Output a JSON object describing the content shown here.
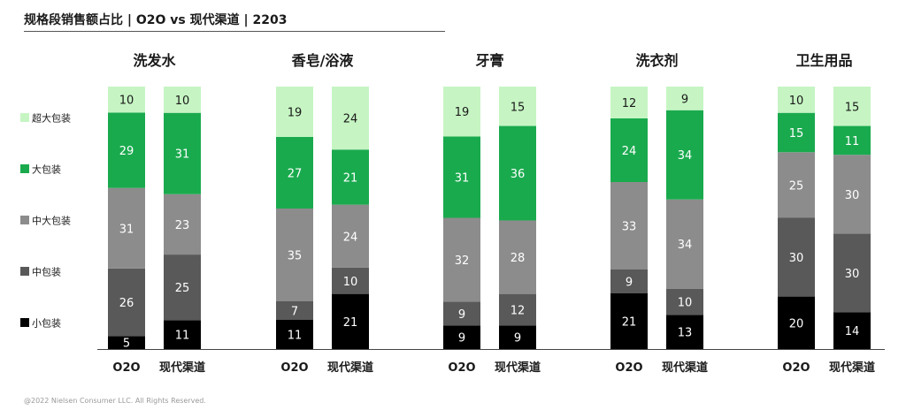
{
  "title": "规格段销售额占比 | O2O vs 现代渠道 | 2203",
  "copyright": "@2022 Nielsen Consumer LLC. All Rights Reserved.",
  "colors": {
    "超大包装": "#c6f5c3",
    "大包装": "#1aaa4e",
    "中大包装": "#8c8c8c",
    "中包装": "#595959",
    "小包装": "#000000",
    "text_dark_seg": "#ffffff",
    "text_light_seg": "#1a1a1a"
  },
  "chart_data": {
    "type": "bar",
    "stacked": true,
    "unit": "%",
    "legend": {
      "position": "left",
      "order": [
        "超大包装",
        "大包装",
        "中大包装",
        "中包装",
        "小包装"
      ]
    },
    "stack_order_bottom_to_top": [
      "小包装",
      "中包装",
      "中大包装",
      "大包装",
      "超大包装"
    ],
    "groups": [
      {
        "name": "洗发水",
        "bars": [
          {
            "label": "O2O",
            "values": {
              "小包装": 5,
              "中包装": 26,
              "中大包装": 31,
              "大包装": 29,
              "超大包装": 10
            }
          },
          {
            "label": "现代渠道",
            "values": {
              "小包装": 11,
              "中包装": 25,
              "中大包装": 23,
              "大包装": 31,
              "超大包装": 10
            }
          }
        ]
      },
      {
        "name": "香皂/浴液",
        "bars": [
          {
            "label": "O2O",
            "values": {
              "小包装": 11,
              "中包装": 7,
              "中大包装": 35,
              "大包装": 27,
              "超大包装": 19
            }
          },
          {
            "label": "现代渠道",
            "values": {
              "小包装": 21,
              "中包装": 10,
              "中大包装": 24,
              "大包装": 21,
              "超大包装": 24
            }
          }
        ]
      },
      {
        "name": "牙膏",
        "bars": [
          {
            "label": "O2O",
            "values": {
              "小包装": 9,
              "中包装": 9,
              "中大包装": 32,
              "大包装": 31,
              "超大包装": 19
            }
          },
          {
            "label": "现代渠道",
            "values": {
              "小包装": 9,
              "中包装": 12,
              "中大包装": 28,
              "大包装": 36,
              "超大包装": 15
            }
          }
        ]
      },
      {
        "name": "洗衣剂",
        "bars": [
          {
            "label": "O2O",
            "values": {
              "小包装": 21,
              "中包装": 9,
              "中大包装": 33,
              "大包装": 24,
              "超大包装": 12
            }
          },
          {
            "label": "现代渠道",
            "values": {
              "小包装": 13,
              "中包装": 10,
              "中大包装": 34,
              "大包装": 34,
              "超大包装": 9
            }
          }
        ]
      },
      {
        "name": "卫生用品",
        "bars": [
          {
            "label": "O2O",
            "values": {
              "小包装": 20,
              "中包装": 30,
              "中大包装": 25,
              "大包装": 15,
              "超大包装": 10
            }
          },
          {
            "label": "现代渠道",
            "values": {
              "小包装": 14,
              "中包装": 30,
              "中大包装": 30,
              "大包装": 11,
              "超大包装": 15
            }
          }
        ]
      }
    ]
  }
}
